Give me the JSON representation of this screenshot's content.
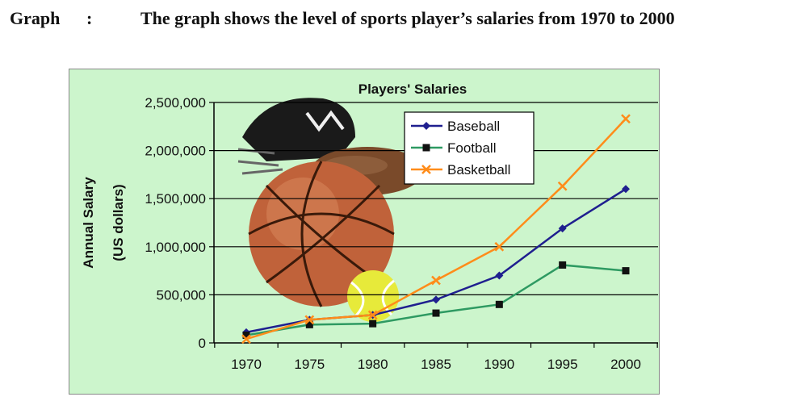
{
  "heading": {
    "label": "Graph",
    "colon": ":",
    "description": "The graph shows the level of sports player’s salaries from 1970 to 2000"
  },
  "chart_data": {
    "type": "line",
    "title": "Players' Salaries",
    "xlabel": "",
    "ylabel": "Annual Salary",
    "ylabel_sub": "(US dollars)",
    "x": [
      1970,
      1975,
      1980,
      1985,
      1990,
      1995,
      2000
    ],
    "x_tick_labels": [
      "1970",
      "1975",
      "1980",
      "1985",
      "1990",
      "1995",
      "2000"
    ],
    "ylim": [
      0,
      2500000
    ],
    "y_ticks": [
      0,
      500000,
      1000000,
      1500000,
      2000000,
      2500000
    ],
    "y_tick_labels": [
      "0",
      "500,000",
      "1,000,000",
      "1,500,000",
      "2,000,000",
      "2,500,000"
    ],
    "grid": true,
    "legend_position": "top-right",
    "background_decoration": [
      "football-helmet",
      "american-football",
      "basketball",
      "tennis-ball"
    ],
    "series": [
      {
        "name": "Baseball",
        "color": "#1f1f8f",
        "marker": "diamond",
        "values": [
          110000,
          240000,
          290000,
          450000,
          700000,
          1190000,
          1600000
        ]
      },
      {
        "name": "Football",
        "color": "#2e9a62",
        "marker": "square",
        "values": [
          80000,
          190000,
          200000,
          310000,
          400000,
          810000,
          750000
        ]
      },
      {
        "name": "Basketball",
        "color": "#ff8c1a",
        "marker": "cross",
        "values": [
          40000,
          240000,
          290000,
          650000,
          1000000,
          1630000,
          2330000
        ]
      }
    ]
  }
}
